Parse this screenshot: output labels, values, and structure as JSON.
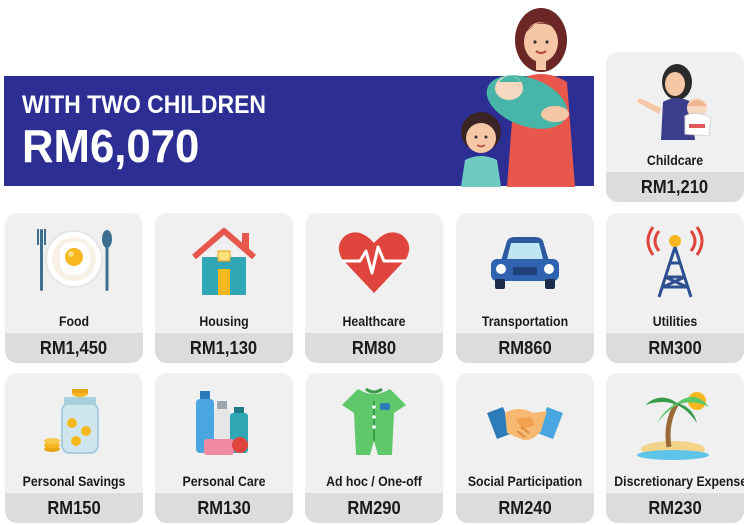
{
  "banner": {
    "subtitle": "WITH TWO CHILDREN",
    "amount": "RM6,070"
  },
  "childcare": {
    "label": "Childcare",
    "value": "RM1,210",
    "icon": "mother-holding-baby-icon"
  },
  "cards": [
    {
      "label": "Food",
      "value": "RM1,450",
      "icon": "plate-with-egg-icon"
    },
    {
      "label": "Housing",
      "value": "RM1,130",
      "icon": "house-icon"
    },
    {
      "label": "Healthcare",
      "value": "RM80",
      "icon": "heart-pulse-icon"
    },
    {
      "label": "Transportation",
      "value": "RM860",
      "icon": "car-icon"
    },
    {
      "label": "Utilities",
      "value": "RM300",
      "icon": "antenna-tower-icon"
    },
    {
      "label": "Personal Savings",
      "value": "RM150",
      "icon": "coin-jar-icon"
    },
    {
      "label": "Personal Care",
      "value": "RM130",
      "icon": "toiletries-icon"
    },
    {
      "label": "Ad hoc / One-off",
      "value": "RM290",
      "icon": "baby-romper-icon"
    },
    {
      "label": "Social Participation",
      "value": "RM240",
      "icon": "handshake-icon"
    },
    {
      "label": "Discretionary Expenses",
      "value": "RM230",
      "icon": "palm-tree-island-icon"
    }
  ],
  "colors": {
    "banner": "#2d2e93",
    "card": "#f0f0f1",
    "band": "#dcdcde"
  }
}
